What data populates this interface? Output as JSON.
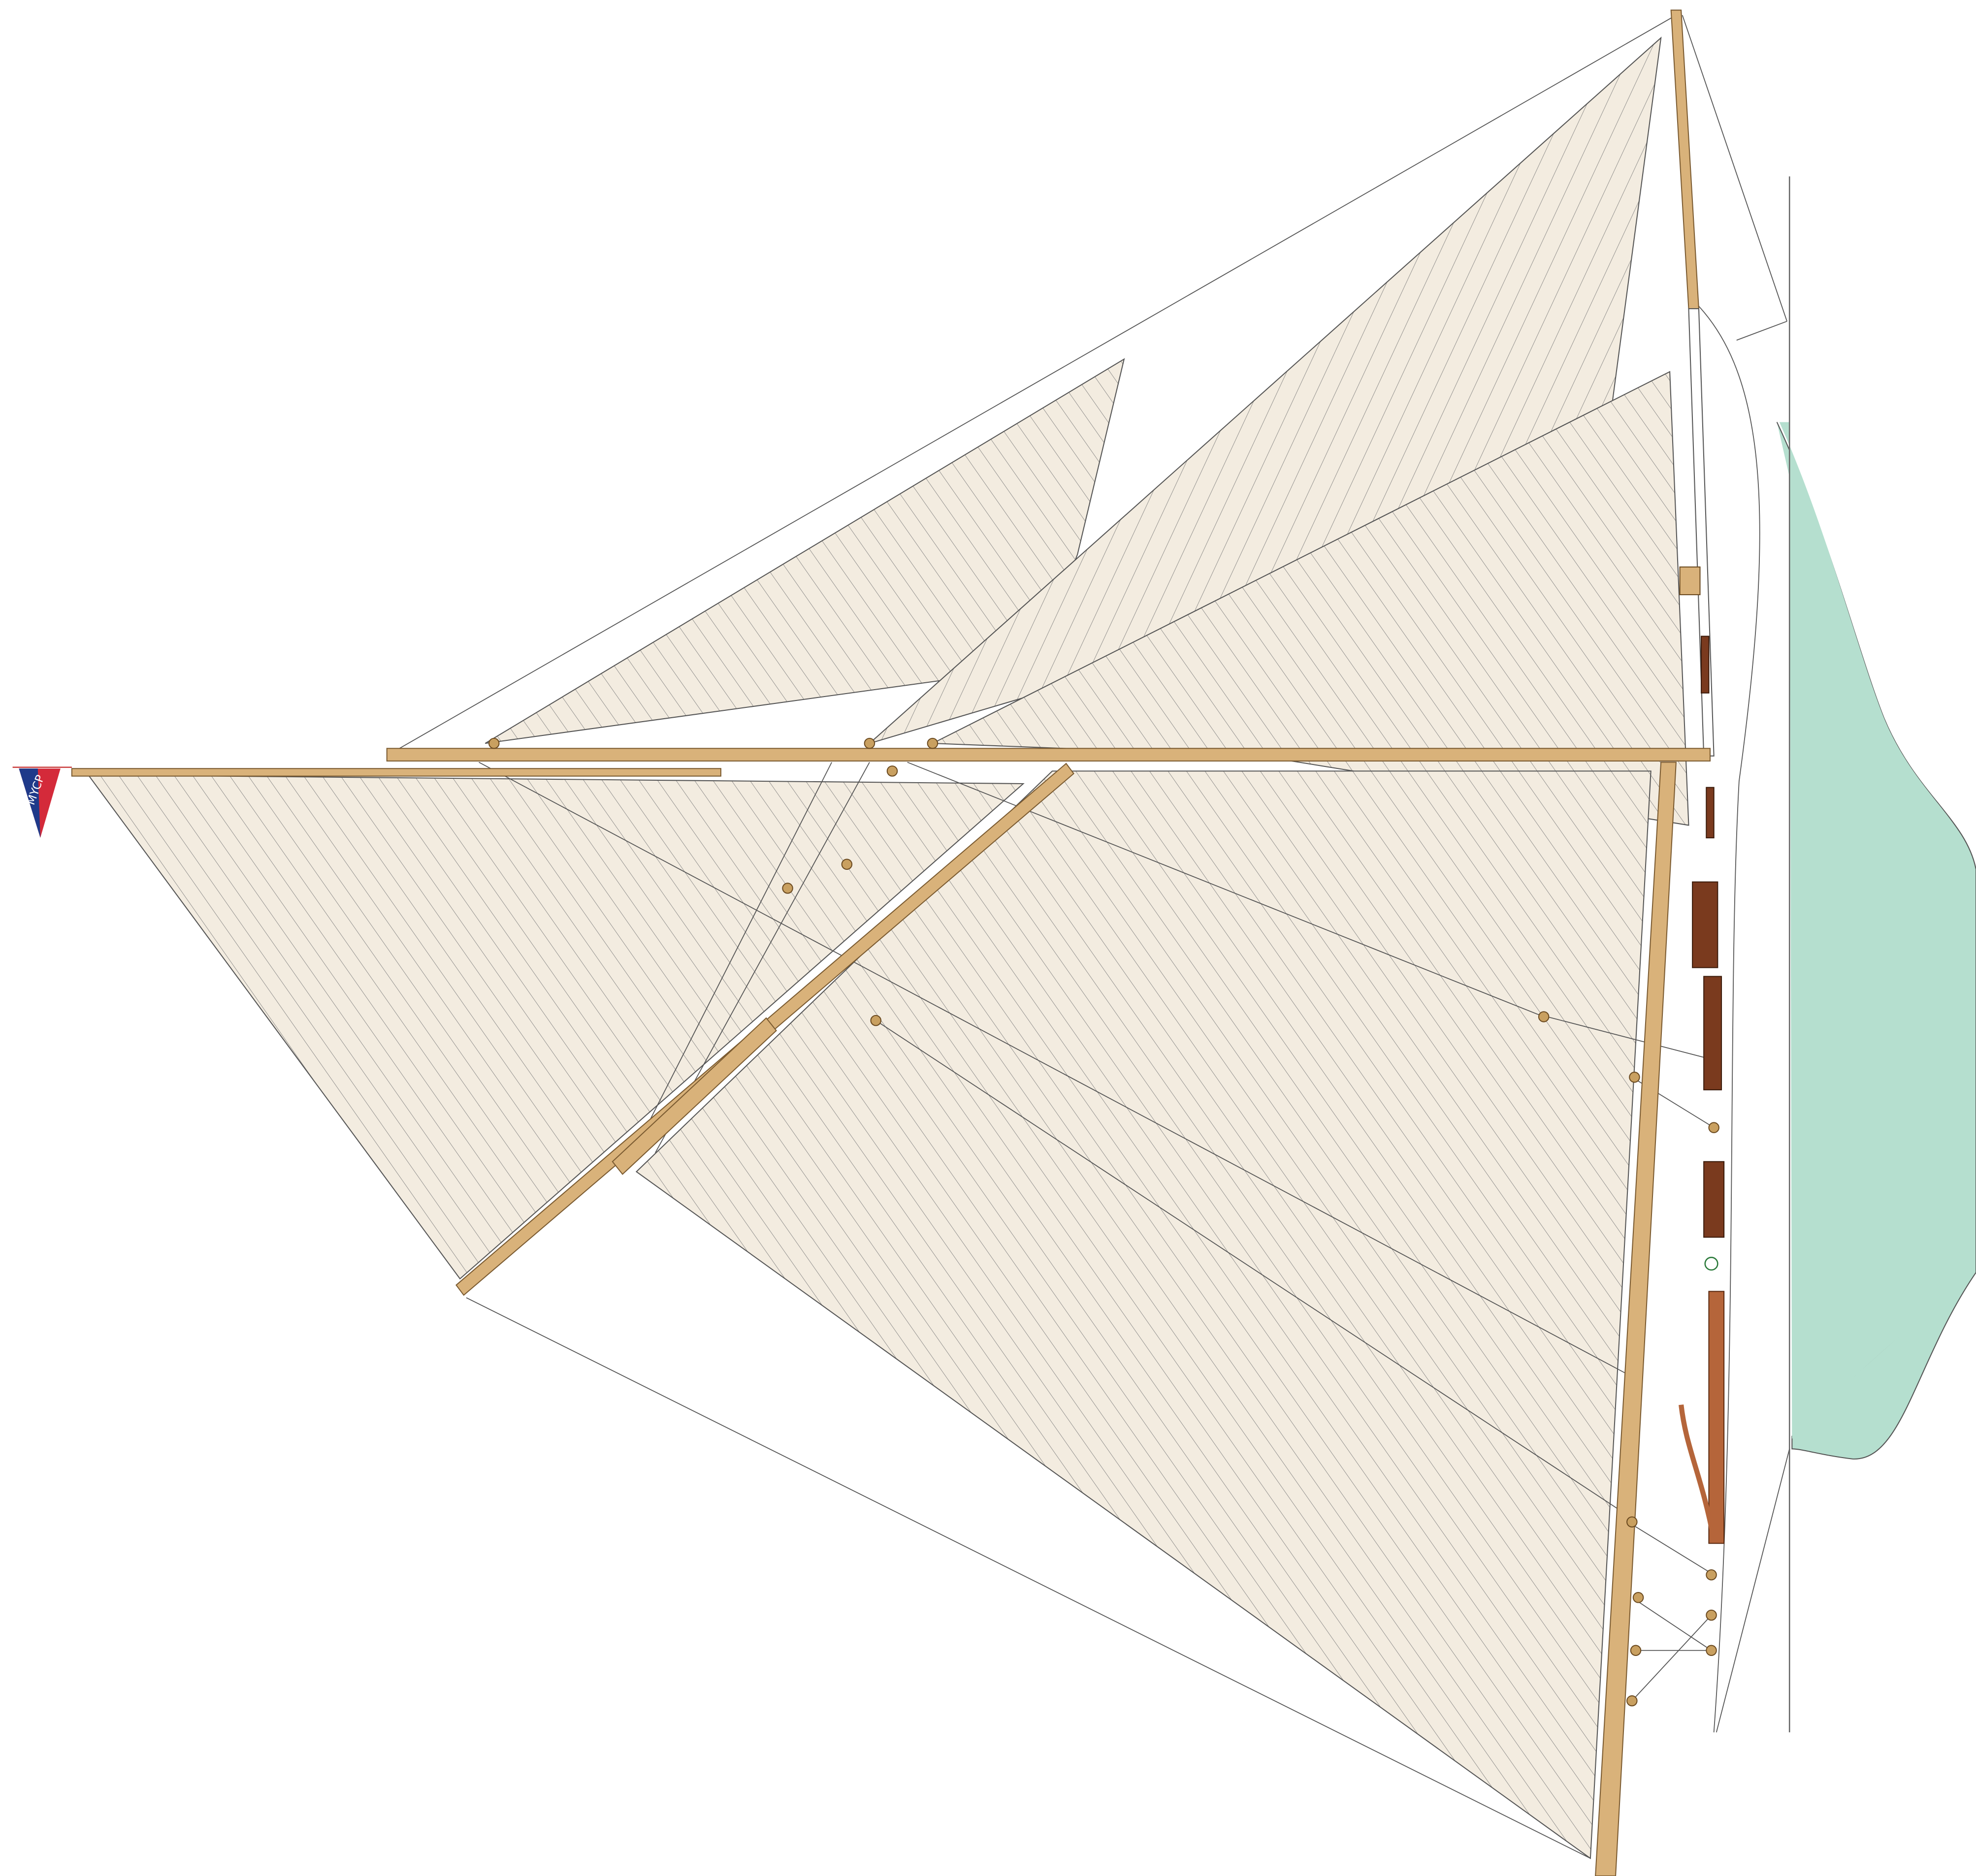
{
  "pennant": {
    "label": "MYCP"
  }
}
